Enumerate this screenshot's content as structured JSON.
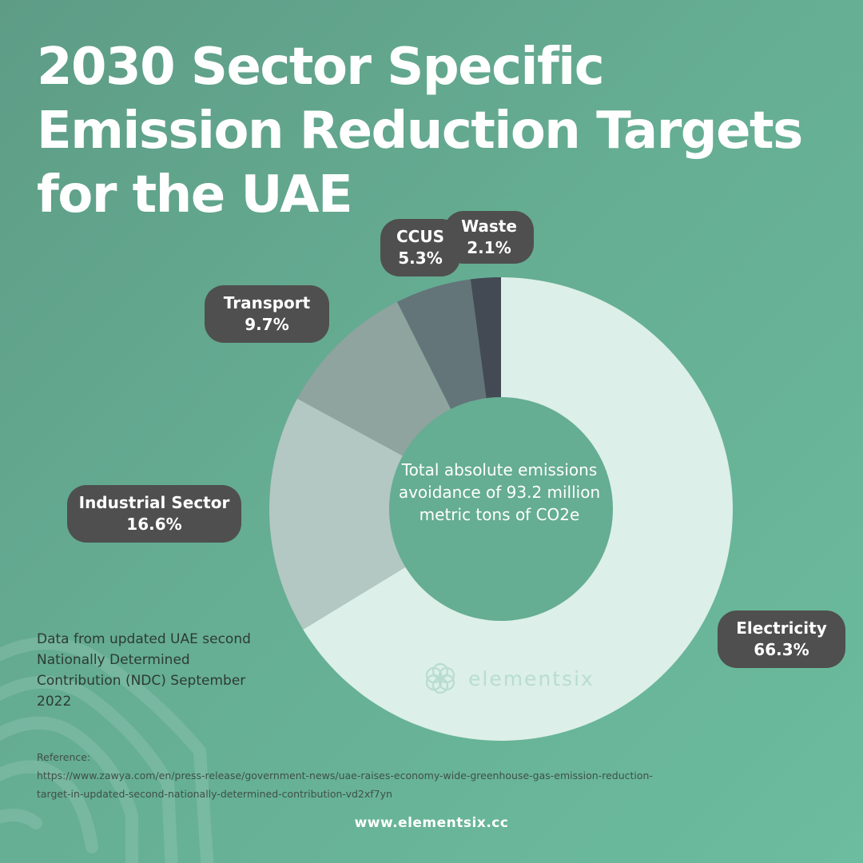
{
  "title": {
    "line1": "2030 Sector Specific",
    "line2": "Emission Reduction Targets",
    "line3": "for the UAE"
  },
  "center_text": "Total absolute emissions avoidance of 93.2 million metric tons of CO2e",
  "source_note": "Data from updated UAE second Nationally Determined Contribution (NDC) September 2022",
  "reference": {
    "label": "Reference:",
    "line1": "https://www.zawya.com/en/press-release/government-news/uae-raises-economy-wide-greenhouse-gas-emission-reduction-",
    "line2": "target-in-updated-second-nationally-determined-contribution-vd2xf7yn"
  },
  "site_url": "www.elementsix.cc",
  "watermark_logo": {
    "brand_text": "elementsix",
    "icon": "elementsix-flower-logo-icon"
  },
  "labels": {
    "electricity": {
      "name": "Electricity",
      "value": "66.3%"
    },
    "industrial": {
      "name": "Industrial Sector",
      "value": "16.6%"
    },
    "transport": {
      "name": "Transport",
      "value": "9.7%"
    },
    "ccus": {
      "name": "CCUS",
      "value": "5.3%"
    },
    "waste": {
      "name": "Waste",
      "value": "2.1%"
    }
  },
  "colors": {
    "electricity": "#dcefe8",
    "industrial": "#b3c7c3",
    "transport": "#8fa39f",
    "ccus": "#637579",
    "waste": "#434a54",
    "pill": "#4f4f4f",
    "center": "#65ad93"
  },
  "chart_data": {
    "type": "pie",
    "subtype": "donut",
    "title": "2030 Sector Specific Emission Reduction Targets for the UAE",
    "categories": [
      "Electricity",
      "Industrial Sector",
      "Transport",
      "CCUS",
      "Waste"
    ],
    "values": [
      66.3,
      16.6,
      9.7,
      5.3,
      2.1
    ],
    "unit": "%",
    "colors": [
      "#dcefe8",
      "#b3c7c3",
      "#8fa39f",
      "#637579",
      "#434a54"
    ],
    "center_annotation": "Total absolute emissions avoidance of 93.2 million metric tons of CO2e",
    "legend": "none"
  }
}
